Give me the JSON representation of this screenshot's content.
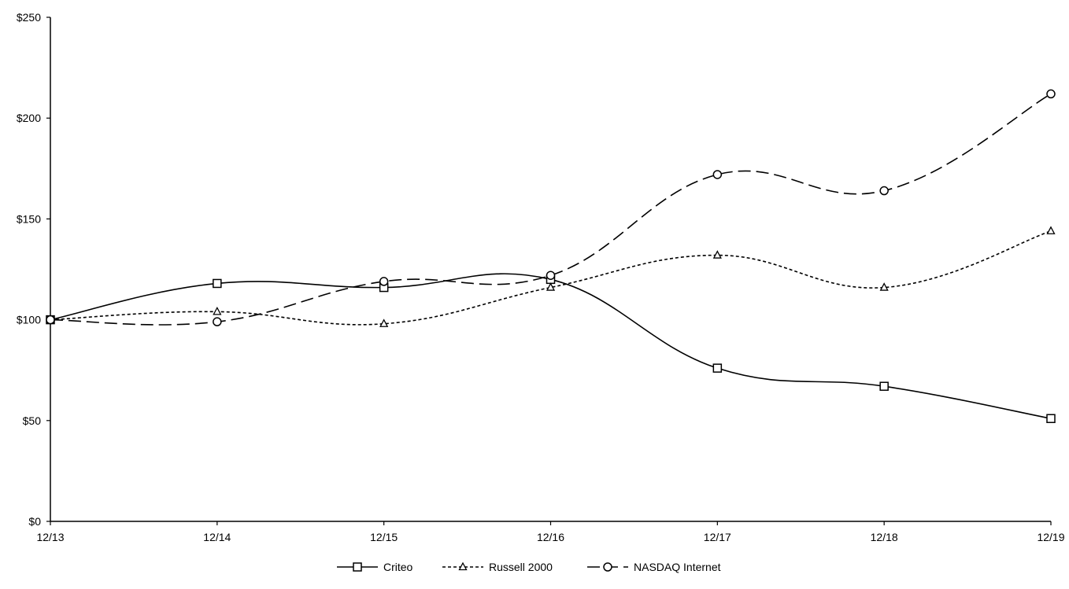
{
  "chart_data": {
    "type": "line",
    "title": "",
    "xlabel": "",
    "ylabel": "",
    "categories": [
      "12/13",
      "12/14",
      "12/15",
      "12/16",
      "12/17",
      "12/18",
      "12/19"
    ],
    "ylim": [
      0,
      250
    ],
    "yticks": [
      0,
      50,
      100,
      150,
      200,
      250
    ],
    "ytick_labels": [
      "$0",
      "$50",
      "$100",
      "$150",
      "$200",
      "$250"
    ],
    "grid": false,
    "legend_position": "bottom",
    "series": [
      {
        "name": "Criteo",
        "values": [
          100,
          118,
          116,
          120,
          76,
          67,
          51
        ],
        "color": "#000000",
        "marker": "square",
        "dash": "solid"
      },
      {
        "name": "Russell 2000",
        "values": [
          100,
          104,
          98,
          116,
          132,
          116,
          144
        ],
        "color": "#000000",
        "marker": "triangle",
        "dash": "short-dash"
      },
      {
        "name": "NASDAQ Internet",
        "values": [
          100,
          99,
          119,
          122,
          172,
          164,
          212
        ],
        "color": "#000000",
        "marker": "circle",
        "dash": "long-dash"
      }
    ]
  }
}
